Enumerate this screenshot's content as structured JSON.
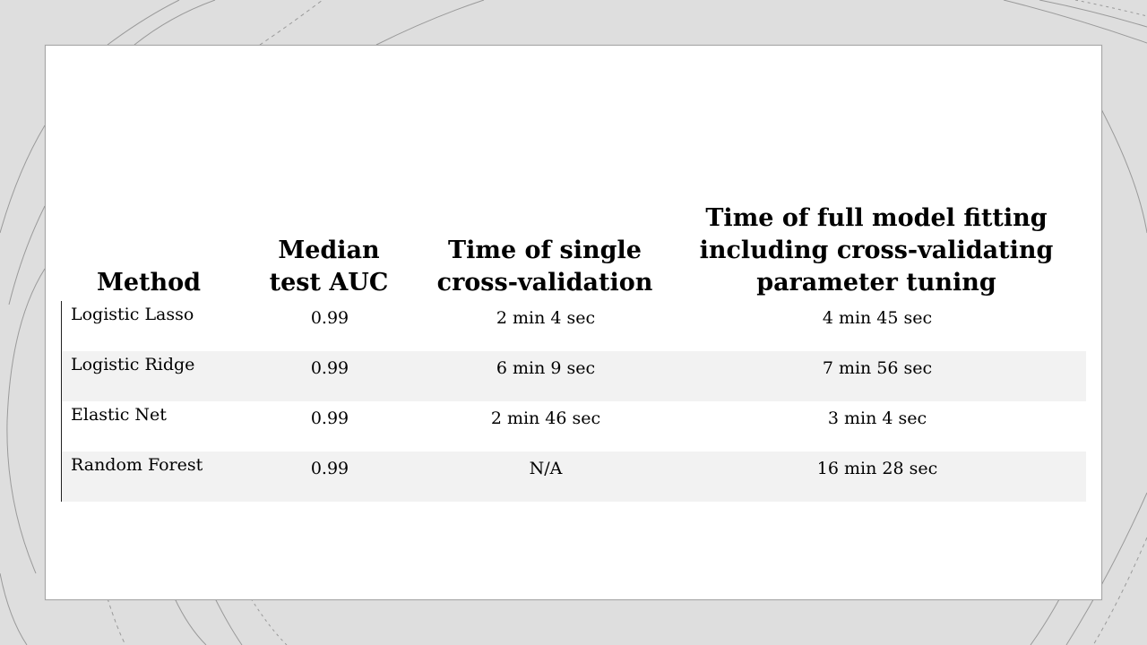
{
  "table": {
    "headers": {
      "method": "Method",
      "auc": "Median test AUC",
      "single": "Time of single cross-validation",
      "full": "Time of full model fitting including cross-validating parameter tuning"
    },
    "rows": [
      {
        "method": "Logistic Lasso",
        "auc": "0.99",
        "single": "2 min 4 sec",
        "full": "4 min 45 sec"
      },
      {
        "method": "Logistic Ridge",
        "auc": "0.99",
        "single": "6 min 9 sec",
        "full": "7 min 56 sec"
      },
      {
        "method": "Elastic Net",
        "auc": "0.99",
        "single": "2 min 46 sec",
        "full": "3 min 4 sec"
      },
      {
        "method": "Random Forest",
        "auc": "0.99",
        "single": "N/A",
        "full": "16 min 28 sec"
      }
    ]
  },
  "colors": {
    "background": "#dedede",
    "slide": "#ffffff",
    "row_alt": "#f2f2f2",
    "decor_lines": "#8c8c8c"
  }
}
